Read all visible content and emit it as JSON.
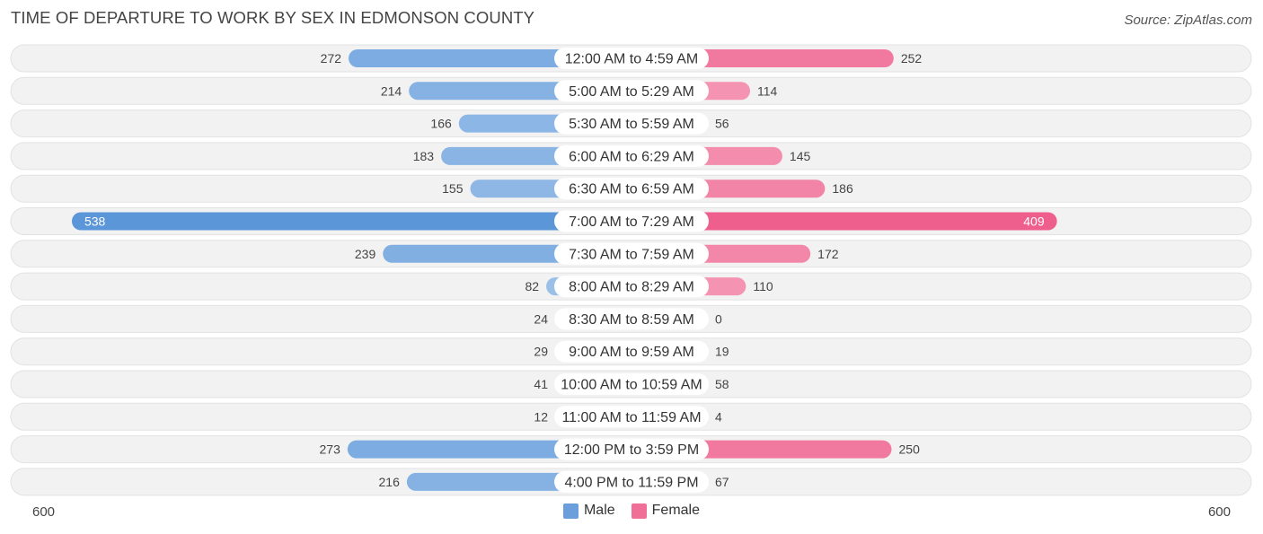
{
  "title": "TIME OF DEPARTURE TO WORK BY SEX IN EDMONSON COUNTY",
  "source": "Source: ZipAtlas.com",
  "axis": {
    "left_label": "600",
    "right_label": "600"
  },
  "legend": [
    {
      "label": "Male",
      "color": "#6a9fdc"
    },
    {
      "label": "Female",
      "color": "#f06f97"
    }
  ],
  "chart_data": {
    "type": "bar",
    "orientation": "horizontal-diverging",
    "title": "TIME OF DEPARTURE TO WORK BY SEX IN EDMONSON COUNTY",
    "xlim": [
      -600,
      600
    ],
    "categories": [
      "12:00 AM to 4:59 AM",
      "5:00 AM to 5:29 AM",
      "5:30 AM to 5:59 AM",
      "6:00 AM to 6:29 AM",
      "6:30 AM to 6:59 AM",
      "7:00 AM to 7:29 AM",
      "7:30 AM to 7:59 AM",
      "8:00 AM to 8:29 AM",
      "8:30 AM to 8:59 AM",
      "9:00 AM to 9:59 AM",
      "10:00 AM to 10:59 AM",
      "11:00 AM to 11:59 AM",
      "12:00 PM to 3:59 PM",
      "4:00 PM to 11:59 PM"
    ],
    "series": [
      {
        "name": "Male",
        "color": "#6a9fdc",
        "values": [
          272,
          214,
          166,
          183,
          155,
          538,
          239,
          82,
          24,
          29,
          41,
          12,
          273,
          216
        ]
      },
      {
        "name": "Female",
        "color": "#f06f97",
        "values": [
          252,
          114,
          56,
          145,
          186,
          409,
          172,
          110,
          0,
          19,
          58,
          4,
          250,
          67
        ]
      }
    ],
    "legend_position": "bottom-center"
  }
}
